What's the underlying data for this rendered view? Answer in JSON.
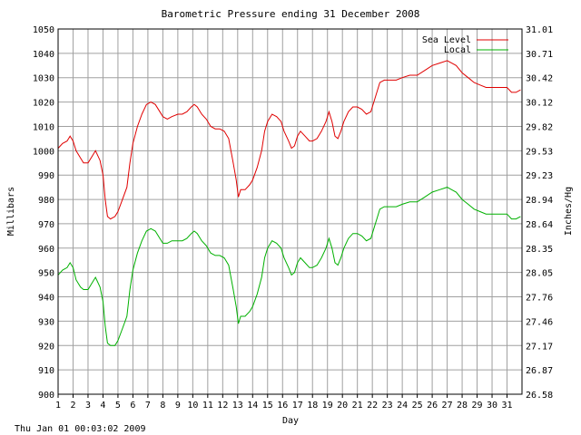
{
  "chart_data": {
    "type": "line",
    "title": "Barometric Pressure ending 31 December 2008",
    "xlabel": "Day",
    "ylabel": "Millibars",
    "y2label": "Inches/Hg",
    "xlim": [
      1,
      32
    ],
    "ylim": [
      900,
      1050
    ],
    "x_ticks": [
      "1",
      "2",
      "3",
      "4",
      "5",
      "6",
      "7",
      "8",
      "9",
      "10",
      "11",
      "12",
      "13",
      "14",
      "15",
      "16",
      "17",
      "18",
      "19",
      "20",
      "21",
      "22",
      "23",
      "24",
      "25",
      "26",
      "27",
      "28",
      "29",
      "30",
      "31"
    ],
    "y_ticks": [
      "900",
      "910",
      "920",
      "930",
      "940",
      "950",
      "960",
      "970",
      "980",
      "990",
      "1000",
      "1010",
      "1020",
      "1030",
      "1040",
      "1050"
    ],
    "y2_ticks": [
      "26.58",
      "26.87",
      "27.17",
      "27.46",
      "27.76",
      "28.05",
      "28.35",
      "28.64",
      "28.94",
      "29.23",
      "29.53",
      "29.82",
      "30.12",
      "30.42",
      "30.71",
      "31.01"
    ],
    "grid": true,
    "legend_position": "top-right",
    "series": [
      {
        "name": "Sea Level",
        "color": "#e00000",
        "points": [
          [
            1.0,
            1001
          ],
          [
            1.3,
            1003
          ],
          [
            1.6,
            1004
          ],
          [
            1.8,
            1006
          ],
          [
            2.0,
            1004
          ],
          [
            2.2,
            1000
          ],
          [
            2.5,
            997
          ],
          [
            2.7,
            995
          ],
          [
            3.0,
            995
          ],
          [
            3.3,
            998
          ],
          [
            3.5,
            1000
          ],
          [
            3.8,
            996
          ],
          [
            4.0,
            990
          ],
          [
            4.15,
            980
          ],
          [
            4.3,
            973
          ],
          [
            4.5,
            972
          ],
          [
            4.8,
            973
          ],
          [
            5.0,
            975
          ],
          [
            5.3,
            980
          ],
          [
            5.6,
            985
          ],
          [
            5.8,
            995
          ],
          [
            6.0,
            1003
          ],
          [
            6.3,
            1010
          ],
          [
            6.6,
            1015
          ],
          [
            6.9,
            1019
          ],
          [
            7.2,
            1020
          ],
          [
            7.5,
            1019
          ],
          [
            7.8,
            1016
          ],
          [
            8.0,
            1014
          ],
          [
            8.3,
            1013
          ],
          [
            8.6,
            1014
          ],
          [
            9.0,
            1015
          ],
          [
            9.3,
            1015
          ],
          [
            9.6,
            1016
          ],
          [
            9.9,
            1018
          ],
          [
            10.1,
            1019
          ],
          [
            10.3,
            1018
          ],
          [
            10.6,
            1015
          ],
          [
            10.9,
            1013
          ],
          [
            11.2,
            1010
          ],
          [
            11.5,
            1009
          ],
          [
            11.8,
            1009
          ],
          [
            12.1,
            1008
          ],
          [
            12.4,
            1005
          ],
          [
            12.7,
            995
          ],
          [
            12.9,
            988
          ],
          [
            13.05,
            981
          ],
          [
            13.2,
            984
          ],
          [
            13.5,
            984
          ],
          [
            13.8,
            986
          ],
          [
            14.0,
            988
          ],
          [
            14.3,
            993
          ],
          [
            14.6,
            1000
          ],
          [
            14.8,
            1008
          ],
          [
            15.0,
            1012
          ],
          [
            15.3,
            1015
          ],
          [
            15.6,
            1014
          ],
          [
            15.9,
            1012
          ],
          [
            16.1,
            1008
          ],
          [
            16.4,
            1004
          ],
          [
            16.6,
            1001
          ],
          [
            16.8,
            1002
          ],
          [
            17.0,
            1006
          ],
          [
            17.2,
            1008
          ],
          [
            17.5,
            1006
          ],
          [
            17.8,
            1004
          ],
          [
            18.0,
            1004
          ],
          [
            18.3,
            1005
          ],
          [
            18.6,
            1008
          ],
          [
            18.9,
            1012
          ],
          [
            19.1,
            1016
          ],
          [
            19.3,
            1012
          ],
          [
            19.5,
            1006
          ],
          [
            19.7,
            1005
          ],
          [
            19.9,
            1008
          ],
          [
            20.1,
            1012
          ],
          [
            20.4,
            1016
          ],
          [
            20.7,
            1018
          ],
          [
            21.0,
            1018
          ],
          [
            21.3,
            1017
          ],
          [
            21.6,
            1015
          ],
          [
            21.9,
            1016
          ],
          [
            22.1,
            1020
          ],
          [
            22.3,
            1024
          ],
          [
            22.5,
            1028
          ],
          [
            22.8,
            1029
          ],
          [
            23.2,
            1029
          ],
          [
            23.6,
            1029
          ],
          [
            24.0,
            1030
          ],
          [
            24.5,
            1031
          ],
          [
            25.0,
            1031
          ],
          [
            25.5,
            1033
          ],
          [
            26.0,
            1035
          ],
          [
            26.5,
            1036
          ],
          [
            27.0,
            1037
          ],
          [
            27.3,
            1036
          ],
          [
            27.6,
            1035
          ],
          [
            28.0,
            1032
          ],
          [
            28.4,
            1030
          ],
          [
            28.8,
            1028
          ],
          [
            29.2,
            1027
          ],
          [
            29.6,
            1026
          ],
          [
            30.0,
            1026
          ],
          [
            30.5,
            1026
          ],
          [
            31.0,
            1026
          ],
          [
            31.3,
            1024
          ],
          [
            31.6,
            1024
          ],
          [
            31.9,
            1025
          ]
        ]
      },
      {
        "name": "Local",
        "color": "#00b000",
        "points": [
          [
            1.0,
            949
          ],
          [
            1.3,
            951
          ],
          [
            1.6,
            952
          ],
          [
            1.8,
            954
          ],
          [
            2.0,
            952
          ],
          [
            2.2,
            947
          ],
          [
            2.5,
            944
          ],
          [
            2.7,
            943
          ],
          [
            3.0,
            943
          ],
          [
            3.3,
            946
          ],
          [
            3.5,
            948
          ],
          [
            3.8,
            944
          ],
          [
            4.0,
            938
          ],
          [
            4.15,
            928
          ],
          [
            4.3,
            921
          ],
          [
            4.5,
            920
          ],
          [
            4.8,
            920
          ],
          [
            5.0,
            922
          ],
          [
            5.3,
            927
          ],
          [
            5.6,
            932
          ],
          [
            5.8,
            943
          ],
          [
            6.0,
            951
          ],
          [
            6.3,
            958
          ],
          [
            6.6,
            963
          ],
          [
            6.9,
            967
          ],
          [
            7.2,
            968
          ],
          [
            7.5,
            967
          ],
          [
            7.8,
            964
          ],
          [
            8.0,
            962
          ],
          [
            8.3,
            962
          ],
          [
            8.6,
            963
          ],
          [
            9.0,
            963
          ],
          [
            9.3,
            963
          ],
          [
            9.6,
            964
          ],
          [
            9.9,
            966
          ],
          [
            10.1,
            967
          ],
          [
            10.3,
            966
          ],
          [
            10.6,
            963
          ],
          [
            10.9,
            961
          ],
          [
            11.2,
            958
          ],
          [
            11.5,
            957
          ],
          [
            11.8,
            957
          ],
          [
            12.1,
            956
          ],
          [
            12.4,
            953
          ],
          [
            12.7,
            943
          ],
          [
            12.9,
            936
          ],
          [
            13.05,
            929
          ],
          [
            13.2,
            932
          ],
          [
            13.5,
            932
          ],
          [
            13.8,
            934
          ],
          [
            14.0,
            936
          ],
          [
            14.3,
            941
          ],
          [
            14.6,
            948
          ],
          [
            14.8,
            956
          ],
          [
            15.0,
            960
          ],
          [
            15.3,
            963
          ],
          [
            15.6,
            962
          ],
          [
            15.9,
            960
          ],
          [
            16.1,
            956
          ],
          [
            16.4,
            952
          ],
          [
            16.6,
            949
          ],
          [
            16.8,
            950
          ],
          [
            17.0,
            954
          ],
          [
            17.2,
            956
          ],
          [
            17.5,
            954
          ],
          [
            17.8,
            952
          ],
          [
            18.0,
            952
          ],
          [
            18.3,
            953
          ],
          [
            18.6,
            956
          ],
          [
            18.9,
            960
          ],
          [
            19.1,
            964
          ],
          [
            19.3,
            960
          ],
          [
            19.5,
            954
          ],
          [
            19.7,
            953
          ],
          [
            19.9,
            956
          ],
          [
            20.1,
            960
          ],
          [
            20.4,
            964
          ],
          [
            20.7,
            966
          ],
          [
            21.0,
            966
          ],
          [
            21.3,
            965
          ],
          [
            21.6,
            963
          ],
          [
            21.9,
            964
          ],
          [
            22.1,
            968
          ],
          [
            22.3,
            972
          ],
          [
            22.5,
            976
          ],
          [
            22.8,
            977
          ],
          [
            23.2,
            977
          ],
          [
            23.6,
            977
          ],
          [
            24.0,
            978
          ],
          [
            24.5,
            979
          ],
          [
            25.0,
            979
          ],
          [
            25.5,
            981
          ],
          [
            26.0,
            983
          ],
          [
            26.5,
            984
          ],
          [
            27.0,
            985
          ],
          [
            27.3,
            984
          ],
          [
            27.6,
            983
          ],
          [
            28.0,
            980
          ],
          [
            28.4,
            978
          ],
          [
            28.8,
            976
          ],
          [
            29.2,
            975
          ],
          [
            29.6,
            974
          ],
          [
            30.0,
            974
          ],
          [
            30.5,
            974
          ],
          [
            31.0,
            974
          ],
          [
            31.3,
            972
          ],
          [
            31.6,
            972
          ],
          [
            31.9,
            973
          ]
        ]
      }
    ]
  },
  "footer": {
    "timestamp": "Thu Jan 01 00:03:02 2009"
  }
}
